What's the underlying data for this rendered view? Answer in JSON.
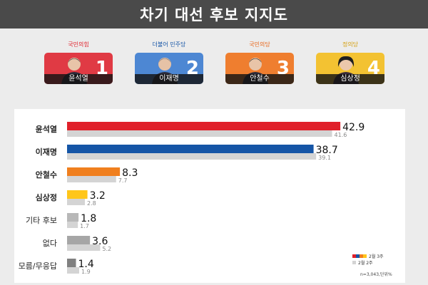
{
  "title": "차기 대선 후보 지지도",
  "candidates": [
    {
      "party": "국민의힘",
      "party_color": "#e0202a",
      "bg": "#e03a44",
      "name": "윤석열",
      "number": "1"
    },
    {
      "party": "더불어 민주당",
      "party_color": "#1555a6",
      "bg": "#4d87d3",
      "name": "이재명",
      "number": "2"
    },
    {
      "party": "국민의당",
      "party_color": "#e8661a",
      "bg": "#ef7e2f",
      "name": "안철수",
      "number": "3"
    },
    {
      "party": "정의당",
      "party_color": "#d4a010",
      "bg": "#f3c232",
      "name": "심상정",
      "number": "4"
    }
  ],
  "chart_data": {
    "type": "bar",
    "orientation": "horizontal",
    "categories": [
      "윤석열",
      "이재명",
      "안철수",
      "심상정",
      "기타 후보",
      "없다",
      "모름/무응답"
    ],
    "series": [
      {
        "name": "2월 3주",
        "values": [
          42.9,
          38.7,
          8.3,
          3.2,
          1.8,
          3.6,
          1.4
        ]
      },
      {
        "name": "2월 2주",
        "values": [
          41.6,
          39.1,
          7.7,
          2.8,
          1.7,
          5.2,
          1.9
        ]
      }
    ],
    "bar_colors": [
      "#e0202a",
      "#1555a6",
      "#f07f1e",
      "#ffc61a",
      "#b8b8b8",
      "#a6a6a6",
      "#808080"
    ],
    "prev_color": "#d4d4d4",
    "xlim": [
      0,
      50
    ],
    "legend": "bottom-right",
    "legend_swatches": [
      "#e0202a",
      "#1555a6",
      "#f07f1e",
      "#ffc61a"
    ],
    "note": "n=3,043,단위%"
  }
}
